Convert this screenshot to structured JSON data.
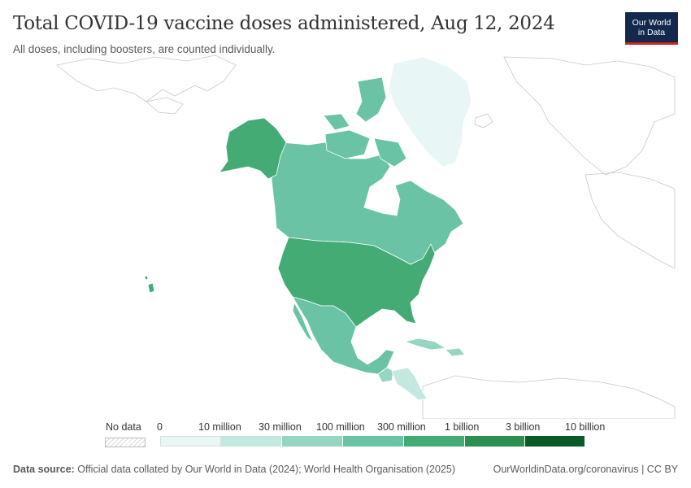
{
  "header": {
    "title": "Total COVID-19 vaccine doses administered, Aug 12, 2024",
    "subtitle": "All doses, including boosters, are counted individually.",
    "logo_line1": "Our World",
    "logo_line2": "in Data"
  },
  "legend": {
    "no_data_label": "No data",
    "ticks": [
      "0",
      "10 million",
      "30 million",
      "100 million",
      "300 million",
      "1 billion",
      "3 billion",
      "10 billion"
    ],
    "colors": [
      "#e9f6f6",
      "#c3e8e0",
      "#94d6c2",
      "#6ac3a4",
      "#45ab75",
      "#2c8f4f",
      "#0a5a2a"
    ]
  },
  "footer": {
    "source_label": "Data source:",
    "source_text": "Official data collated by Our World in Data (2024); World Health Organisation (2025)",
    "url": "OurWorldinData.org/coronavirus | CC BY"
  },
  "map": {
    "countries": [
      {
        "name": "Greenland",
        "color": "#e9f6f6"
      },
      {
        "name": "Canada",
        "color": "#6ac3a4"
      },
      {
        "name": "Alaska",
        "color": "#45ab75"
      },
      {
        "name": "United States",
        "color": "#45ab75"
      },
      {
        "name": "Mexico",
        "color": "#6ac3a4"
      },
      {
        "name": "Guatemala",
        "color": "#94d6c2"
      },
      {
        "name": "Honduras",
        "color": "#c3e8e0"
      },
      {
        "name": "Nicaragua",
        "color": "#c3e8e0"
      },
      {
        "name": "Cuba",
        "color": "#94d6c2"
      },
      {
        "name": "Hawaii",
        "color": "#45ab75"
      }
    ]
  }
}
